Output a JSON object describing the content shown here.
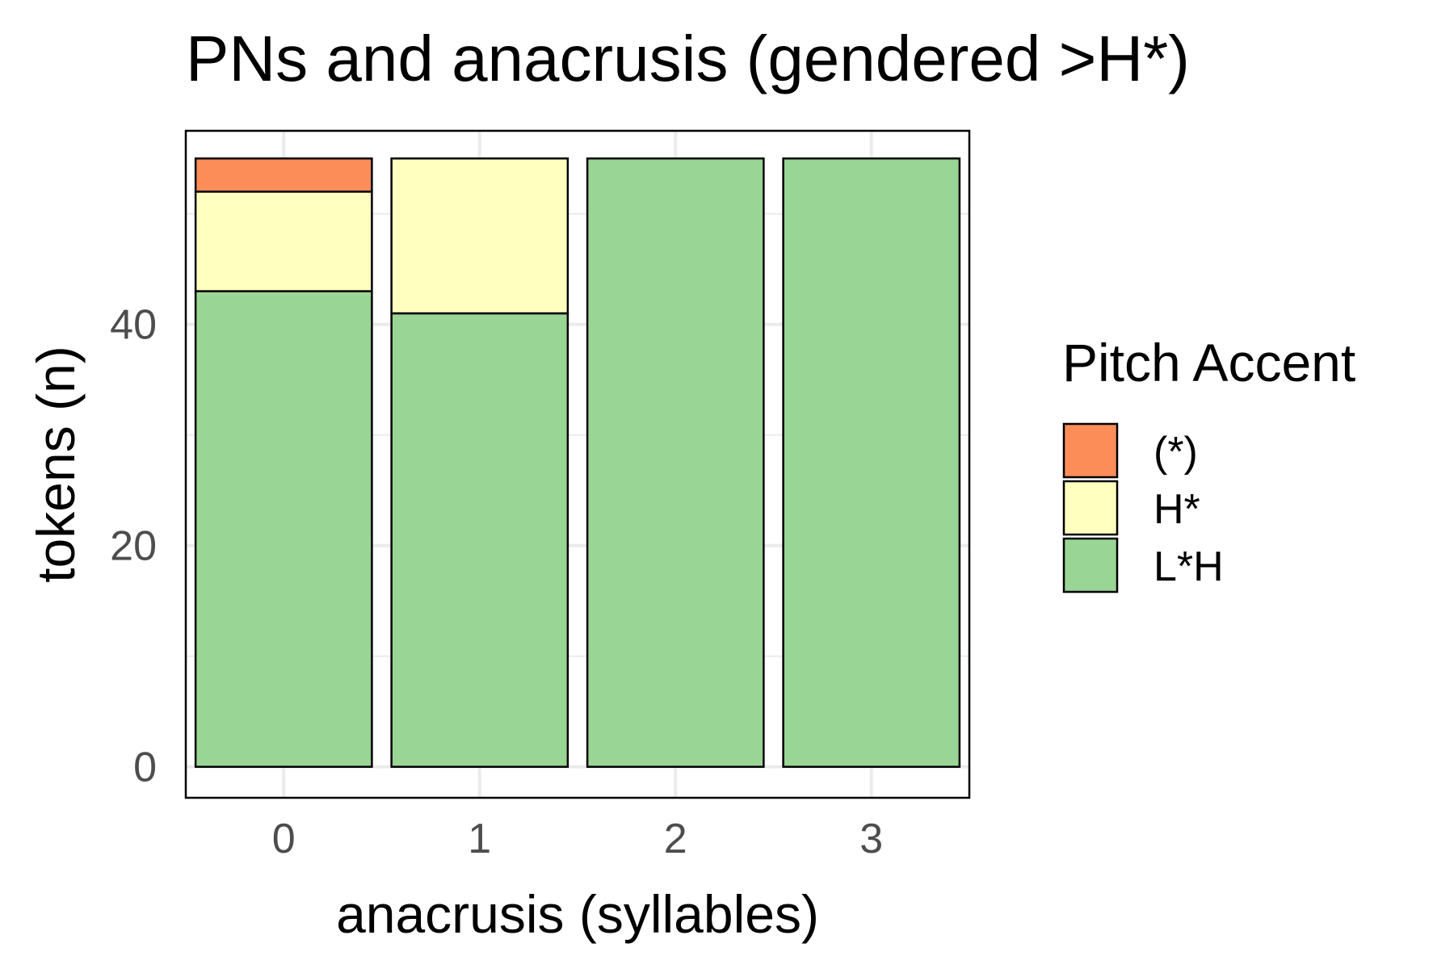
{
  "chart_data": {
    "type": "bar",
    "stacked": true,
    "title": "PNs and anacrusis (gendered >H*)",
    "xlabel": "anacrusis (syllables)",
    "ylabel": "tokens (n)",
    "categories": [
      "0",
      "1",
      "2",
      "3"
    ],
    "ylim": [
      -2.8,
      57.5
    ],
    "y_ticks": [
      0,
      20,
      40
    ],
    "grid": true,
    "series": [
      {
        "name": "L*H",
        "color": "#99d594",
        "values": [
          43,
          41,
          55,
          55
        ]
      },
      {
        "name": "H*",
        "color": "#ffffbf",
        "values": [
          9,
          14,
          0,
          0
        ]
      },
      {
        "name": "(*)",
        "color": "#fc8d59",
        "values": [
          3,
          0,
          0,
          0
        ]
      }
    ],
    "legend": {
      "title": "Pitch Accent",
      "position": "right",
      "order": [
        "(*)",
        "H*",
        "L*H"
      ]
    }
  }
}
